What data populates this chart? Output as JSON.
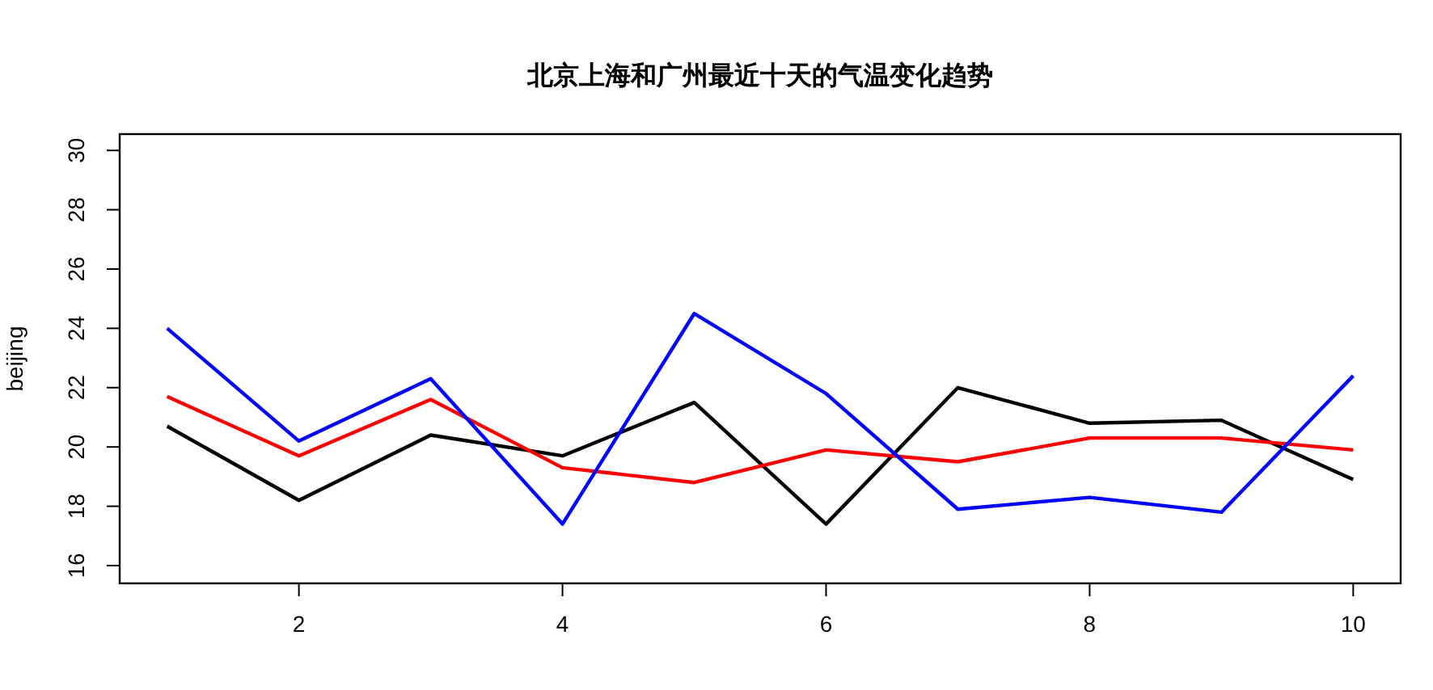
{
  "chart_data": {
    "type": "line",
    "title": "北京上海和广州最近十天的气温变化趋势",
    "ylabel": "beijing",
    "x": [
      1,
      2,
      3,
      4,
      5,
      6,
      7,
      8,
      9,
      10
    ],
    "series": [
      {
        "color": "#000000",
        "values": [
          20.7,
          18.2,
          20.4,
          19.7,
          21.5,
          17.4,
          22.0,
          20.8,
          20.9,
          18.9
        ]
      },
      {
        "color": "#ff0000",
        "values": [
          21.7,
          19.7,
          21.6,
          19.3,
          18.8,
          19.9,
          19.5,
          20.3,
          20.3,
          19.9
        ]
      },
      {
        "color": "#0000ff",
        "values": [
          24.0,
          20.2,
          22.3,
          17.4,
          24.5,
          21.8,
          17.9,
          18.3,
          17.8,
          22.4
        ]
      }
    ],
    "xlim": [
      0.64,
      10.36
    ],
    "ylim": [
      15.4,
      30.55
    ],
    "xticks": [
      2,
      4,
      6,
      8,
      10
    ],
    "yticks": [
      16,
      18,
      20,
      22,
      24,
      26,
      28,
      30
    ],
    "grid": false,
    "marker": "none",
    "line_style": "solid"
  }
}
